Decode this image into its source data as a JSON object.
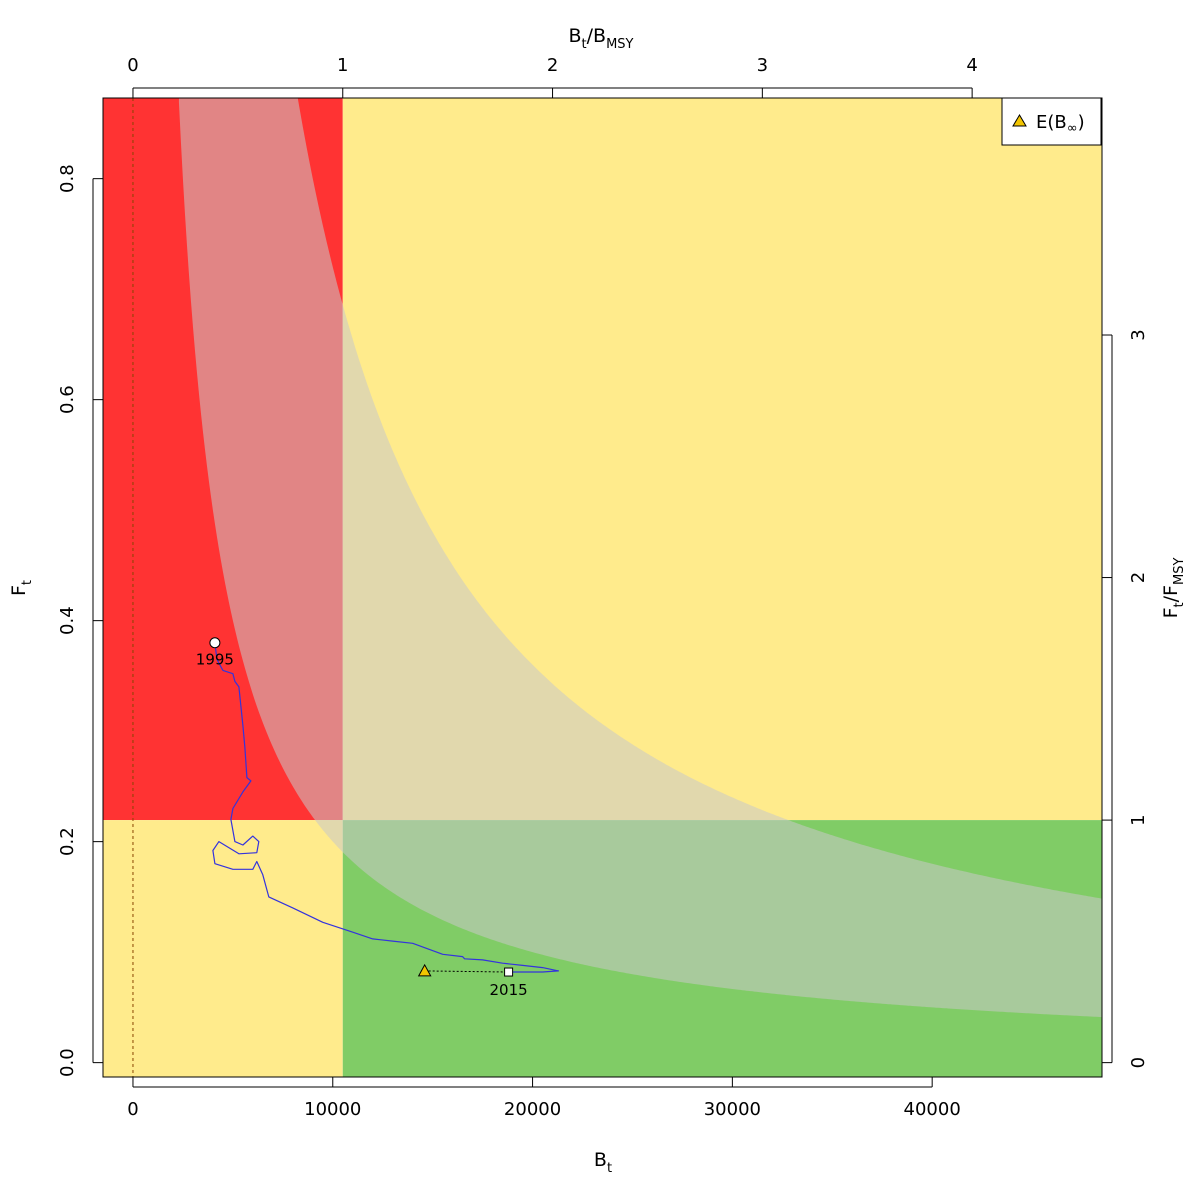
{
  "chart_data": {
    "type": "line",
    "xlabel": {
      "main": "B",
      "sub": "t"
    },
    "ylabel": {
      "main": "F",
      "sub": "t"
    },
    "x2label": {
      "main": "B",
      "sub": "t",
      "div": "/B",
      "sub2": "MSY"
    },
    "y2label": {
      "main": "F",
      "sub": "t",
      "div": "/F",
      "sub2": "MSY"
    },
    "xlim": [
      -1500,
      48500
    ],
    "ylim": [
      -0.013,
      0.873
    ],
    "bmsy": 10500,
    "fmsy": 0.2195,
    "x_ticks": [
      0,
      10000,
      20000,
      30000,
      40000
    ],
    "x_tick_labels": [
      "0",
      "10000",
      "20000",
      "30000",
      "40000"
    ],
    "y_ticks": [
      0.0,
      0.2,
      0.4,
      0.6,
      0.8
    ],
    "y_tick_labels": [
      "0.0",
      "0.2",
      "0.4",
      "0.6",
      "0.8"
    ],
    "x2_ticks": [
      0,
      1,
      2,
      3,
      4
    ],
    "x2_tick_labels": [
      "0",
      "1",
      "2",
      "3",
      "4"
    ],
    "y2_ticks": [
      0,
      1,
      2,
      3
    ],
    "y2_tick_labels": [
      "0",
      "1",
      "2",
      "3"
    ],
    "zone_colors": {
      "red": "#ff3333",
      "yellow": "#ffeb8c",
      "green": "#80cc66",
      "band_fill": "#c8c8c8",
      "band_opacity": 0.55,
      "trajectory": "#3333dd",
      "triangle": "#f2c500"
    },
    "msy_band": {
      "catch_lower": 2000,
      "catch_upper": 7200,
      "upper_edge_start_x": 3500,
      "upper_edge_top_y": 0.87
    },
    "trajectory": {
      "x": [
        4100,
        4200,
        4500,
        5000,
        5100,
        5300,
        5500,
        5600,
        5700,
        5900,
        5500,
        5000,
        4900,
        5100,
        5500,
        6000,
        6300,
        6200,
        5300,
        4300,
        4000,
        4100,
        5000,
        6000,
        6200,
        6500,
        6800,
        8000,
        9500,
        11000,
        12000,
        13000,
        14000,
        15500,
        16500,
        16600,
        17500,
        18500,
        19500,
        20500,
        21300,
        20500,
        19500,
        18800
      ],
      "y": [
        0.38,
        0.365,
        0.355,
        0.352,
        0.345,
        0.34,
        0.305,
        0.285,
        0.258,
        0.255,
        0.245,
        0.23,
        0.22,
        0.2,
        0.197,
        0.205,
        0.2,
        0.19,
        0.189,
        0.2,
        0.192,
        0.18,
        0.175,
        0.175,
        0.182,
        0.17,
        0.15,
        0.14,
        0.127,
        0.118,
        0.112,
        0.11,
        0.108,
        0.098,
        0.096,
        0.094,
        0.093,
        0.09,
        0.088,
        0.086,
        0.083,
        0.082,
        0.082,
        0.082
      ]
    },
    "start_point": {
      "x": 4100,
      "y": 0.38,
      "label": "1995"
    },
    "end_point": {
      "x": 18800,
      "y": 0.082,
      "label": "2015"
    },
    "equilibrium": {
      "x": 14600,
      "y": 0.083
    },
    "legend": {
      "label": "E(B",
      "symbol": "∞",
      "close": ")",
      "position": "top-right"
    },
    "reference_line_x": 0
  }
}
